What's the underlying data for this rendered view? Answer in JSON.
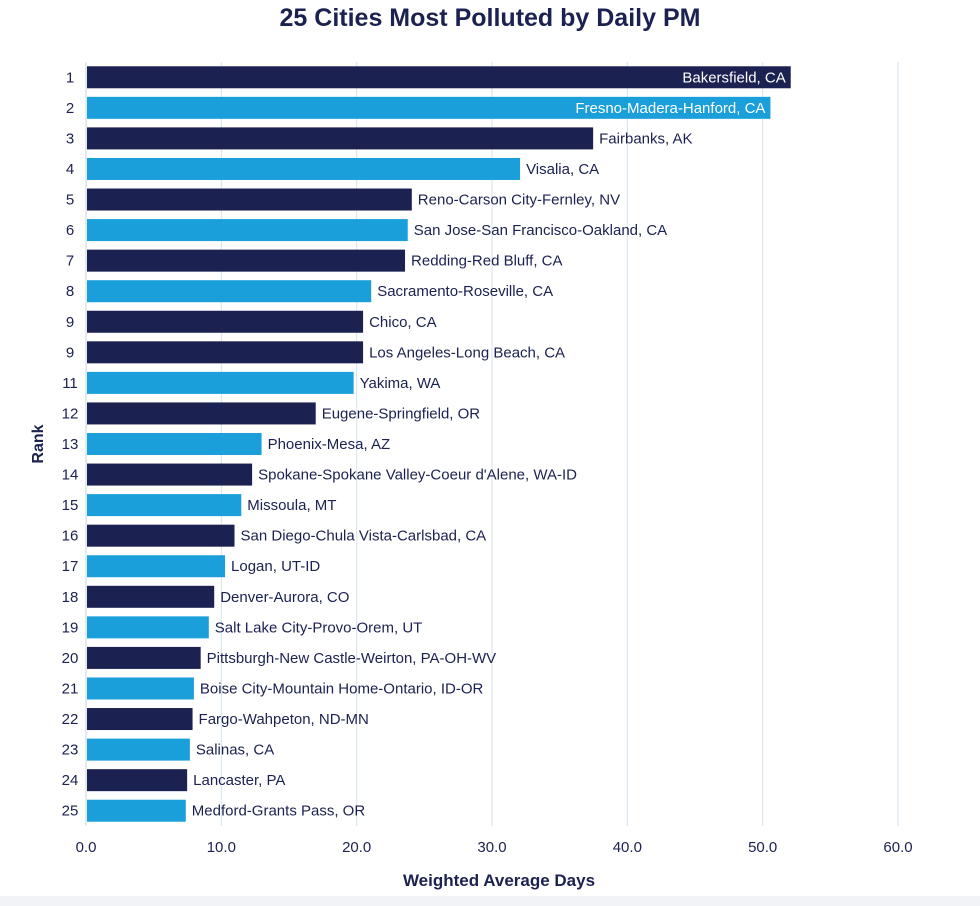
{
  "chart_data": {
    "type": "bar",
    "orientation": "horizontal",
    "title": "25 Cities Most Polluted by Daily PM",
    "xlabel": "Weighted Average Days",
    "ylabel": "Rank",
    "xlim": [
      0,
      60
    ],
    "xticks": [
      "0.0",
      "10.0",
      "20.0",
      "30.0",
      "40.0",
      "50.0",
      "60.0"
    ],
    "grid": "vertical",
    "colors": {
      "dark": "#1b2150",
      "light": "#1a9fdb"
    },
    "bars": [
      {
        "rank": "1",
        "city": "Bakersfield, CA",
        "value": 52.0,
        "color": "dark"
      },
      {
        "rank": "2",
        "city": "Fresno-Madera-Hanford, CA",
        "value": 50.5,
        "color": "light"
      },
      {
        "rank": "3",
        "city": "Fairbanks, AK",
        "value": 37.4,
        "color": "dark"
      },
      {
        "rank": "4",
        "city": "Visalia, CA",
        "value": 32.0,
        "color": "light"
      },
      {
        "rank": "5",
        "city": "Reno-Carson City-Fernley, NV",
        "value": 24.0,
        "color": "dark"
      },
      {
        "rank": "6",
        "city": "San Jose-San Francisco-Oakland, CA",
        "value": 23.7,
        "color": "light"
      },
      {
        "rank": "7",
        "city": "Redding-Red Bluff, CA",
        "value": 23.5,
        "color": "dark"
      },
      {
        "rank": "8",
        "city": "Sacramento-Roseville, CA",
        "value": 21.0,
        "color": "light"
      },
      {
        "rank": "9",
        "city": "Chico, CA",
        "value": 20.4,
        "color": "dark"
      },
      {
        "rank": "9",
        "city": "Los Angeles-Long Beach, CA",
        "value": 20.4,
        "color": "dark"
      },
      {
        "rank": "11",
        "city": "Yakima, WA",
        "value": 19.7,
        "color": "light"
      },
      {
        "rank": "12",
        "city": "Eugene-Springfield, OR",
        "value": 16.9,
        "color": "dark"
      },
      {
        "rank": "13",
        "city": "Phoenix-Mesa, AZ",
        "value": 12.9,
        "color": "light"
      },
      {
        "rank": "14",
        "city": "Spokane-Spokane Valley-Coeur d'Alene, WA-ID",
        "value": 12.2,
        "color": "dark"
      },
      {
        "rank": "15",
        "city": "Missoula, MT",
        "value": 11.4,
        "color": "light"
      },
      {
        "rank": "16",
        "city": "San Diego-Chula Vista-Carlsbad, CA",
        "value": 10.9,
        "color": "dark"
      },
      {
        "rank": "17",
        "city": "Logan, UT-ID",
        "value": 10.2,
        "color": "light"
      },
      {
        "rank": "18",
        "city": "Denver-Aurora, CO",
        "value": 9.4,
        "color": "dark"
      },
      {
        "rank": "19",
        "city": "Salt Lake City-Provo-Orem, UT",
        "value": 9.0,
        "color": "light"
      },
      {
        "rank": "20",
        "city": "Pittsburgh-New Castle-Weirton, PA-OH-WV",
        "value": 8.4,
        "color": "dark"
      },
      {
        "rank": "21",
        "city": "Boise City-Mountain Home-Ontario, ID-OR",
        "value": 7.9,
        "color": "light"
      },
      {
        "rank": "22",
        "city": "Fargo-Wahpeton, ND-MN",
        "value": 7.8,
        "color": "dark"
      },
      {
        "rank": "23",
        "city": "Salinas, CA",
        "value": 7.6,
        "color": "light"
      },
      {
        "rank": "24",
        "city": "Lancaster, PA",
        "value": 7.4,
        "color": "dark"
      },
      {
        "rank": "25",
        "city": "Medford-Grants Pass, OR",
        "value": 7.3,
        "color": "light"
      }
    ]
  }
}
